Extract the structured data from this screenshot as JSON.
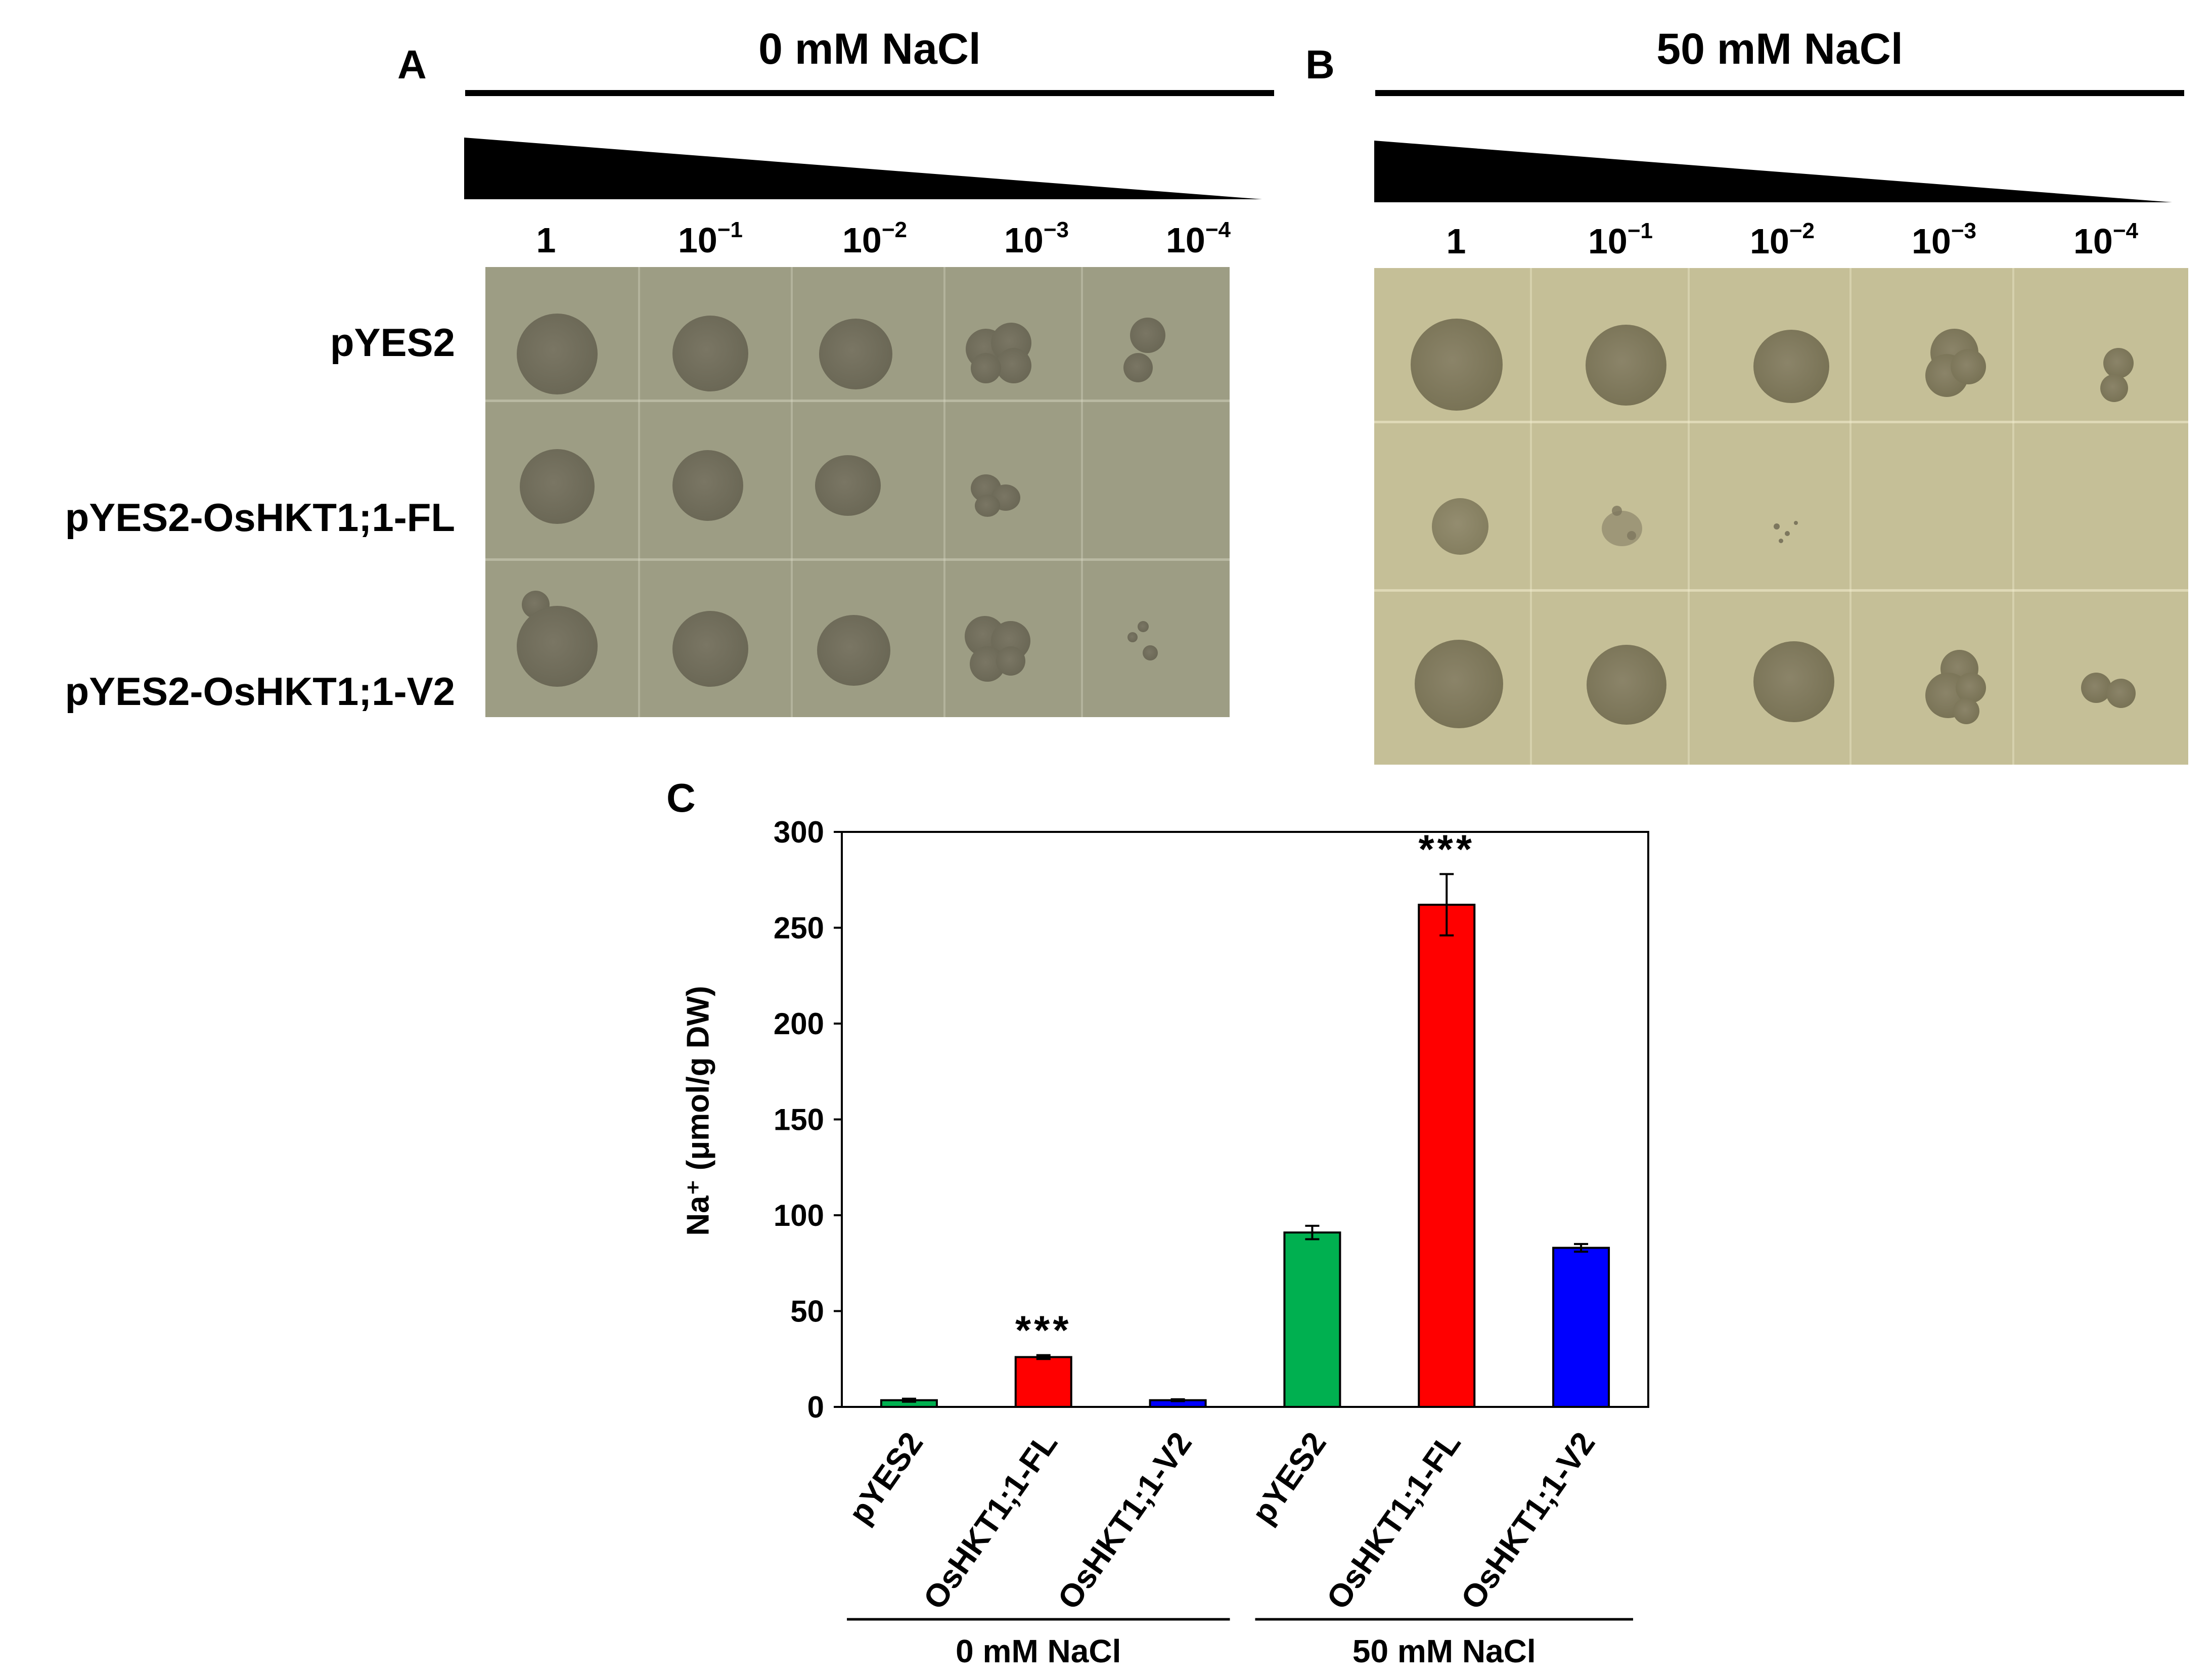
{
  "panels": {
    "A": {
      "letter": "A",
      "condition": "0 mM NaCl",
      "dilutions": [
        {
          "base": "1",
          "exp": ""
        },
        {
          "base": "10",
          "exp": "−1"
        },
        {
          "base": "10",
          "exp": "−2"
        },
        {
          "base": "10",
          "exp": "−3"
        },
        {
          "base": "10",
          "exp": "−4"
        }
      ],
      "rows": [
        "pYES2",
        "pYES2-OsHKT1;1-FL",
        "pYES2-OsHKT1;1-V2"
      ]
    },
    "B": {
      "letter": "B",
      "condition": "50 mM NaCl",
      "dilutions": [
        {
          "base": "1",
          "exp": ""
        },
        {
          "base": "10",
          "exp": "−1"
        },
        {
          "base": "10",
          "exp": "−2"
        },
        {
          "base": "10",
          "exp": "−3"
        },
        {
          "base": "10",
          "exp": "−4"
        }
      ]
    },
    "C": {
      "letter": "C"
    }
  },
  "chart_data": {
    "type": "bar",
    "ylabel": "Na⁺ (μmol/g DW)",
    "ylim": [
      0,
      300
    ],
    "yticks": [
      0,
      50,
      100,
      150,
      200,
      250,
      300
    ],
    "categories": [
      "pYES2",
      "OsHKT1;1-FL",
      "OsHKT1;1-V2",
      "pYES2",
      "OsHKT1;1-FL",
      "OsHKT1;1-V2"
    ],
    "groups": [
      {
        "label": "0 mM NaCl",
        "indices": [
          0,
          1,
          2
        ]
      },
      {
        "label": "50 mM NaCl",
        "indices": [
          3,
          4,
          5
        ]
      }
    ],
    "values": [
      3.5,
      26,
      3.5,
      91,
      262,
      83
    ],
    "errors": [
      0.8,
      1.0,
      0.5,
      3.5,
      16,
      2.0
    ],
    "colors": [
      "#00b050",
      "#ff0000",
      "#0000ff",
      "#00b050",
      "#ff0000",
      "#0000ff"
    ],
    "annotations": [
      "",
      "***",
      "",
      "",
      "***",
      ""
    ],
    "grid": false,
    "legend": "none"
  }
}
